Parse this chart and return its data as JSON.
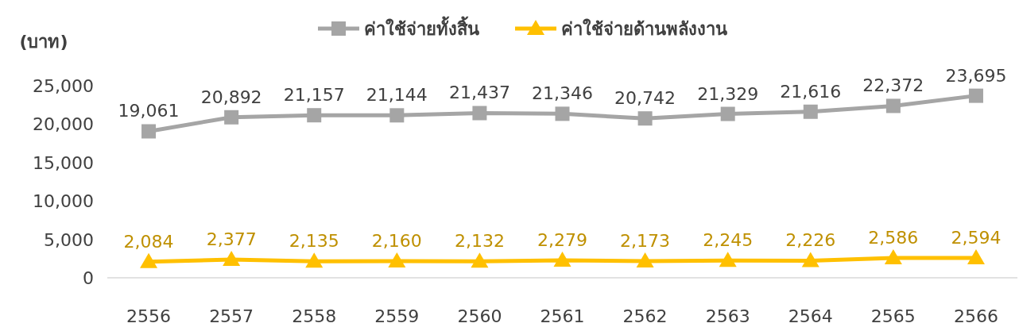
{
  "chart_data": {
    "type": "line",
    "ylabel": "(บาท)",
    "categories": [
      "2556",
      "2557",
      "2558",
      "2559",
      "2560",
      "2561",
      "2562",
      "2563",
      "2564",
      "2565",
      "2566"
    ],
    "series": [
      {
        "name": "ค่าใช้จ่ายทั้งสิ้น",
        "color": "#a5a5a5",
        "marker": "square",
        "values": [
          19061,
          20892,
          21157,
          21144,
          21437,
          21346,
          20742,
          21329,
          21616,
          22372,
          23695
        ],
        "value_labels": [
          "19,061",
          "20,892",
          "21,157",
          "21,144",
          "21,437",
          "21,346",
          "20,742",
          "21,329",
          "21,616",
          "22,372",
          "23,695"
        ]
      },
      {
        "name": "ค่าใช้จ่ายด้านพลังงาน",
        "color": "#ffc000",
        "marker": "triangle",
        "values": [
          2084,
          2377,
          2135,
          2160,
          2132,
          2279,
          2173,
          2245,
          2226,
          2586,
          2594
        ],
        "value_labels": [
          "2,084",
          "2,377",
          "2,135",
          "2,160",
          "2,132",
          "2,279",
          "2,173",
          "2,245",
          "2,226",
          "2,586",
          "2,594"
        ]
      }
    ],
    "ylim": [
      0,
      25000
    ],
    "yticks": [
      0,
      {
        "value": 5000,
        "label": "5,000"
      },
      {
        "value": 10000,
        "label": "10,000"
      },
      {
        "value": 15000,
        "label": "15,000"
      },
      {
        "value": 20000,
        "label": "20,000"
      },
      {
        "value": 25000,
        "label": "25,000"
      }
    ],
    "grid": false,
    "legend": "top",
    "line_style": "solid"
  }
}
